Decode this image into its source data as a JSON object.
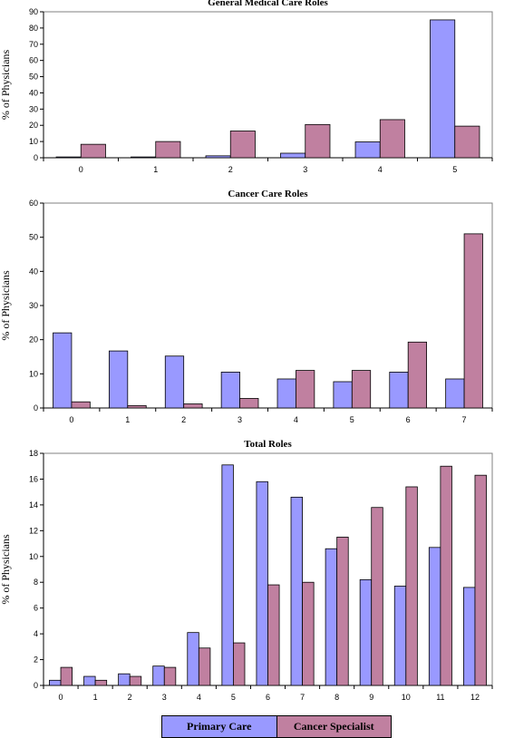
{
  "chart_data": [
    {
      "type": "bar",
      "title": "General Medical Care Roles",
      "ylabel": "% of Physicians",
      "ylim": [
        0,
        90
      ],
      "yticks": [
        0,
        10,
        20,
        30,
        40,
        50,
        60,
        70,
        80,
        90
      ],
      "categories": [
        "0",
        "1",
        "2",
        "3",
        "4",
        "5"
      ],
      "series": [
        {
          "name": "Primary Care",
          "values": [
            0.5,
            0.5,
            1.2,
            2.8,
            9.8,
            85
          ]
        },
        {
          "name": "Cancer Specialist",
          "values": [
            8.3,
            10.0,
            16.5,
            20.5,
            23.5,
            19.5
          ]
        }
      ]
    },
    {
      "type": "bar",
      "title": "Cancer Care Roles",
      "ylabel": "% of Physicians",
      "ylim": [
        0,
        60
      ],
      "yticks": [
        0,
        10,
        20,
        30,
        40,
        50,
        60
      ],
      "categories": [
        "0",
        "1",
        "2",
        "3",
        "4",
        "5",
        "6",
        "7"
      ],
      "series": [
        {
          "name": "Primary Care",
          "values": [
            22,
            16.7,
            15.2,
            10.5,
            8.5,
            7.7,
            10.5,
            8.5
          ]
        },
        {
          "name": "Cancer Specialist",
          "values": [
            1.8,
            0.7,
            1.2,
            2.8,
            11,
            11,
            19.3,
            51
          ]
        }
      ]
    },
    {
      "type": "bar",
      "title": "Total Roles",
      "ylabel": "% of Physicians",
      "ylim": [
        0,
        18
      ],
      "yticks": [
        0,
        2,
        4,
        6,
        8,
        10,
        12,
        14,
        16,
        18
      ],
      "categories": [
        "0",
        "1",
        "2",
        "3",
        "4",
        "5",
        "6",
        "7",
        "8",
        "9",
        "10",
        "11",
        "12"
      ],
      "series": [
        {
          "name": "Primary Care",
          "values": [
            0.4,
            0.7,
            0.9,
            1.5,
            4.1,
            17.1,
            15.8,
            14.6,
            10.6,
            8.2,
            7.7,
            10.7,
            7.6
          ]
        },
        {
          "name": "Cancer Specialist",
          "values": [
            1.4,
            0.4,
            0.7,
            1.4,
            2.9,
            3.3,
            7.8,
            8.0,
            11.5,
            13.8,
            15.4,
            17.0,
            16.3
          ]
        }
      ]
    }
  ],
  "legend": {
    "items": [
      {
        "label": "Primary Care",
        "color": "#9999ff"
      },
      {
        "label": "Cancer Specialist",
        "color": "#c080a0"
      }
    ]
  }
}
